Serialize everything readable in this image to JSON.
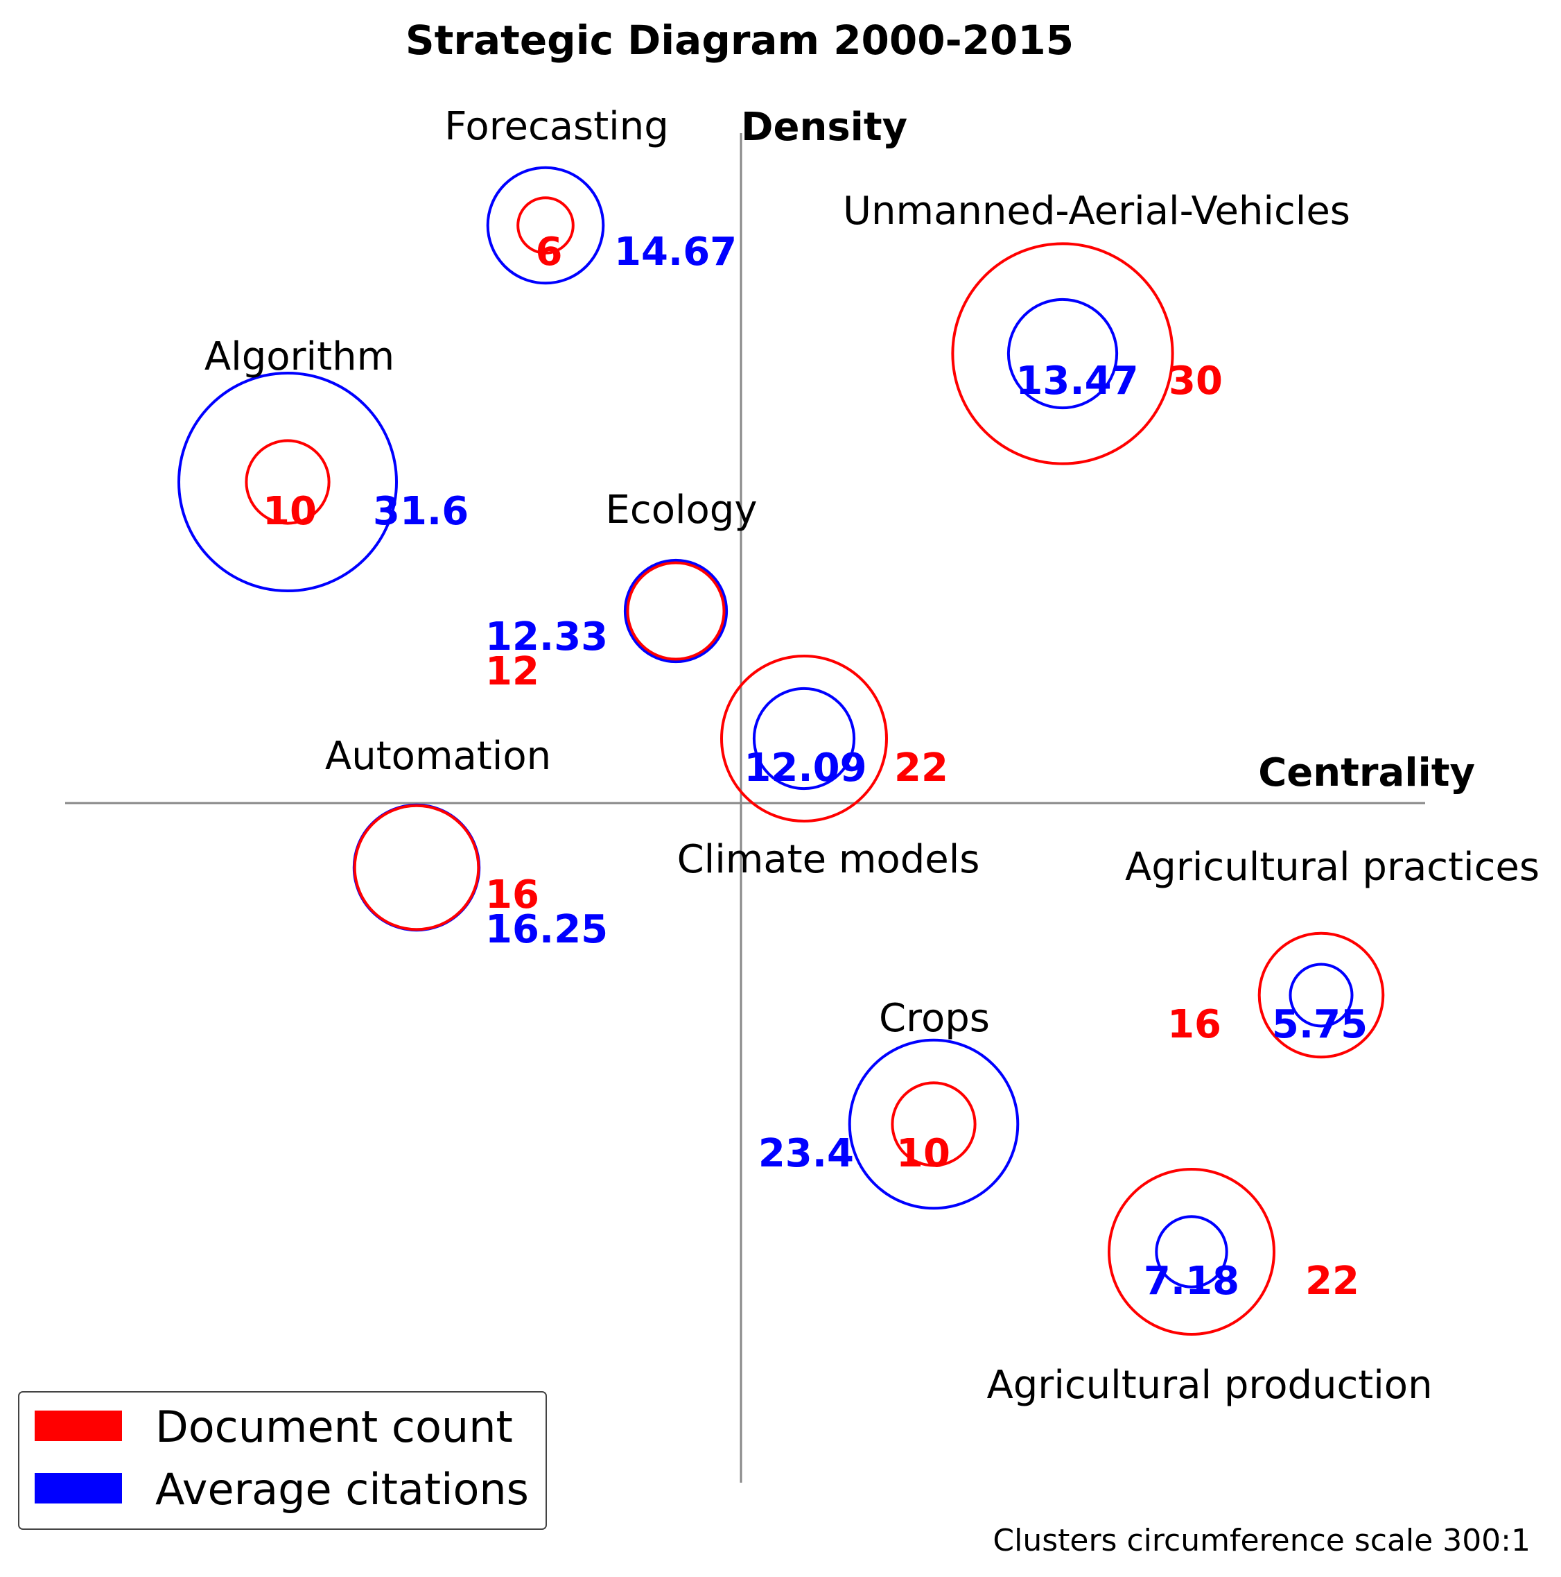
{
  "chart_data": {
    "type": "scatter",
    "title": "Strategic Diagram 2000-2015",
    "xlabel": "Centrality",
    "ylabel": "Density",
    "grid": false,
    "legend_position": "bottom-left",
    "legend": [
      {
        "label": "Document count",
        "color": "#ff0000"
      },
      {
        "label": "Average citations",
        "color": "#0000ff"
      }
    ],
    "scale_note": "Clusters circumference scale 300:1",
    "clusters": [
      {
        "name": "Forecasting",
        "documents": 6,
        "avg_citations": 14.67,
        "documents_label": "6",
        "citations_label": "14.67",
        "quadrant": "upper-left"
      },
      {
        "name": "Unmanned-Aerial-Vehicles",
        "documents": 30,
        "avg_citations": 13.47,
        "documents_label": "30",
        "citations_label": "13.47",
        "quadrant": "upper-right"
      },
      {
        "name": "Algorithm",
        "documents": 10,
        "avg_citations": 31.6,
        "documents_label": "10",
        "citations_label": "31.6",
        "quadrant": "upper-left"
      },
      {
        "name": "Ecology",
        "documents": 12,
        "avg_citations": 12.33,
        "documents_label": "12",
        "citations_label": "12.33",
        "quadrant": "upper-left"
      },
      {
        "name": "Climate models",
        "documents": 22,
        "avg_citations": 12.09,
        "documents_label": "22",
        "citations_label": "12.09",
        "quadrant": "upper-right"
      },
      {
        "name": "Automation",
        "documents": 16,
        "avg_citations": 16.25,
        "documents_label": "16",
        "citations_label": "16.25",
        "quadrant": "lower-left"
      },
      {
        "name": "Agricultural practices",
        "documents": 16,
        "avg_citations": 5.75,
        "documents_label": "16",
        "citations_label": "5.75",
        "quadrant": "lower-right"
      },
      {
        "name": "Crops",
        "documents": 10,
        "avg_citations": 23.4,
        "documents_label": "10",
        "citations_label": "23.4",
        "quadrant": "lower-right"
      },
      {
        "name": "Agricultural production",
        "documents": 22,
        "avg_citations": 7.18,
        "documents_label": "22",
        "citations_label": "7.18",
        "quadrant": "lower-right"
      }
    ]
  }
}
